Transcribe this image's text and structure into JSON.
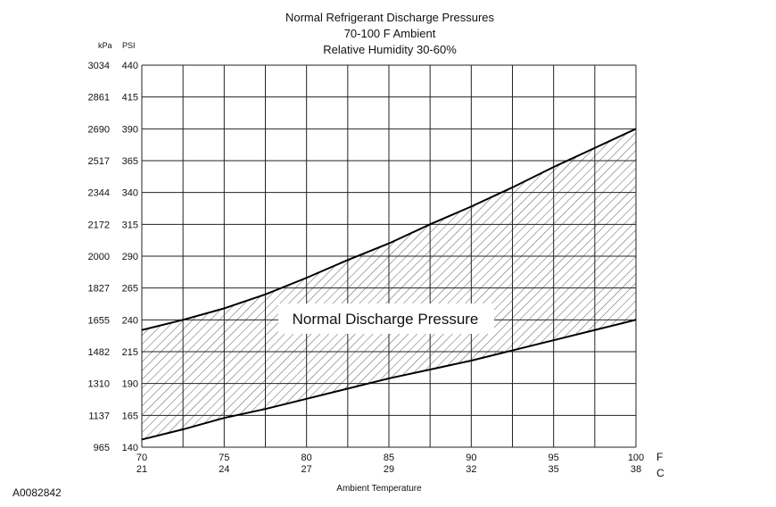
{
  "chart_data": {
    "type": "area",
    "title": [
      "Normal  Refrigerant  Discharge  Pressures",
      "70-100 F Ambient",
      "Relative Humidity 30-60%"
    ],
    "xlabel": "Ambient Temperature",
    "xunit_primary": "F",
    "xunit_secondary": "C",
    "xlim": [
      70,
      100
    ],
    "x_ticks_f": [
      "70",
      "75",
      "80",
      "85",
      "90",
      "95",
      "100"
    ],
    "x_ticks_c": [
      "21",
      "24",
      "27",
      "29",
      "32",
      "35",
      "38"
    ],
    "x_grid_step": 2.5,
    "ylim": [
      140,
      440
    ],
    "yunit_left": "kPa",
    "yunit_right": "PSI",
    "y_ticks_psi": [
      "440",
      "415",
      "390",
      "365",
      "340",
      "315",
      "290",
      "265",
      "240",
      "215",
      "190",
      "165",
      "140"
    ],
    "y_ticks_kpa": [
      "3034",
      "2861",
      "2690",
      "2517",
      "2344",
      "2172",
      "2000",
      "1827",
      "1655",
      "1482",
      "1310",
      "1137",
      "965"
    ],
    "grid": true,
    "band_label": "Normal Discharge Pressure",
    "x": [
      70,
      72.5,
      75,
      77.5,
      80,
      82.5,
      85,
      87.5,
      90,
      92.5,
      95,
      97.5,
      100
    ],
    "series": [
      {
        "name": "upper limit",
        "values": [
          232,
          240,
          249,
          260,
          273,
          287,
          300,
          315,
          329,
          344,
          360,
          375,
          390
        ]
      },
      {
        "name": "lower limit",
        "values": [
          146,
          154,
          163,
          170,
          178,
          186,
          194,
          201,
          208,
          216,
          224,
          232,
          240
        ]
      }
    ]
  },
  "figure_id": "A0082842"
}
